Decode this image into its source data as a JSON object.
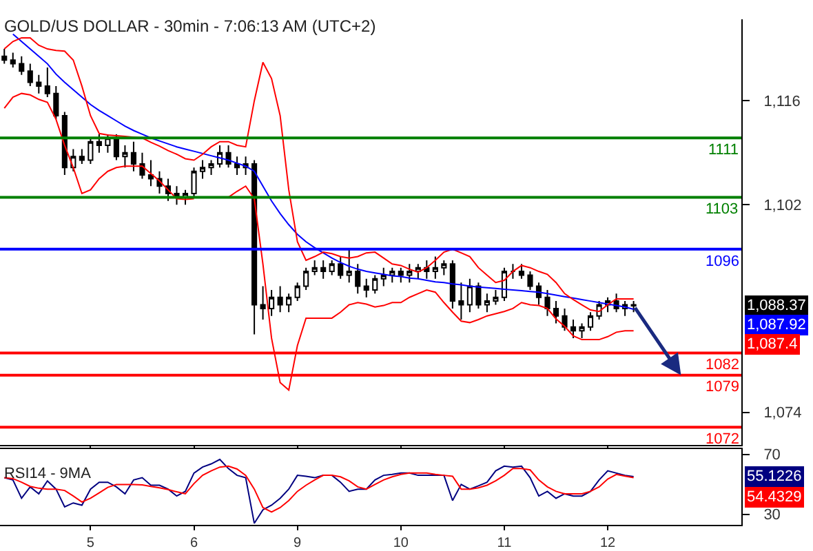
{
  "chart_data": [
    {
      "type": "candlestick",
      "title": "GOLD/US DOLLAR - 30min - 7:06:13 AM (UTC+2)",
      "categories": [
        null,
        null,
        null,
        null,
        null,
        null,
        null,
        null,
        null,
        null,
        "5",
        null,
        null,
        null,
        null,
        null,
        null,
        null,
        null,
        null,
        null,
        null,
        "6",
        null,
        null,
        null,
        null,
        null,
        null,
        null,
        null,
        null,
        null,
        null,
        "9",
        null,
        null,
        null,
        null,
        null,
        null,
        null,
        null,
        null,
        null,
        null,
        "10",
        null,
        null,
        null,
        null,
        null,
        null,
        null,
        null,
        null,
        null,
        null,
        "11",
        null,
        null,
        null,
        null,
        null,
        null,
        null,
        null,
        null,
        null,
        null,
        "12",
        null,
        null,
        null,
        null,
        null,
        null,
        null,
        null,
        null,
        null,
        null,
        null,
        null,
        null,
        null
      ],
      "color": "#000000",
      "ohlc": [
        [
          1122,
          1123,
          1121,
          1121.5
        ],
        [
          1121.5,
          1122.5,
          1120.5,
          1121
        ],
        [
          1121,
          1122,
          1119.5,
          1120
        ],
        [
          1120,
          1121,
          1118,
          1118.5
        ],
        [
          1118.5,
          1119.5,
          1117,
          1118
        ],
        [
          1118,
          1120.5,
          1116.5,
          1117
        ],
        [
          1117,
          1118,
          1113.5,
          1114
        ],
        [
          1114,
          1114.5,
          1106,
          1107
        ],
        [
          1107,
          1109.5,
          1106.5,
          1108.5
        ],
        [
          1108.5,
          1109.5,
          1107.5,
          1108
        ],
        [
          1108,
          1111,
          1107.5,
          1110.5
        ],
        [
          1110.5,
          1111.5,
          1109,
          1110
        ],
        [
          1110,
          1111.5,
          1109,
          1111
        ],
        [
          1111,
          1111.5,
          1108,
          1108.5
        ],
        [
          1108.5,
          1110,
          1107,
          1109
        ],
        [
          1109,
          1110.5,
          1106.5,
          1107.5
        ],
        [
          1107.5,
          1109,
          1105.5,
          1106
        ],
        [
          1106,
          1108,
          1104.5,
          1105.5
        ],
        [
          1105.5,
          1106.5,
          1103.5,
          1104.5
        ],
        [
          1104.5,
          1105.5,
          1102.5,
          1103.5
        ],
        [
          1103.5,
          1104.5,
          1102,
          1103
        ],
        [
          1103,
          1104,
          1102,
          1103.5
        ],
        [
          1103.5,
          1107,
          1103,
          1106.5
        ],
        [
          1106.5,
          1108,
          1105.5,
          1107
        ],
        [
          1107,
          1108,
          1106,
          1107.5
        ],
        [
          1107.5,
          1110,
          1107,
          1109
        ],
        [
          1109,
          1110,
          1107,
          1107.5
        ],
        [
          1107.5,
          1108.5,
          1106,
          1107
        ],
        [
          1107,
          1108.5,
          1106,
          1107.5
        ],
        [
          1107.5,
          1108,
          1084.5,
          1088.5
        ],
        [
          1088.5,
          1091,
          1086.5,
          1088
        ],
        [
          1088,
          1090.5,
          1087,
          1089.5
        ],
        [
          1089.5,
          1091,
          1087.5,
          1088.5
        ],
        [
          1088.5,
          1090,
          1087.5,
          1089.5
        ],
        [
          1089.5,
          1091.5,
          1089,
          1091
        ],
        [
          1091,
          1093.5,
          1090.5,
          1093
        ],
        [
          1093,
          1094.5,
          1092.5,
          1093.5
        ],
        [
          1093.5,
          1094.5,
          1092,
          1093
        ],
        [
          1093,
          1094.5,
          1092.5,
          1094
        ],
        [
          1094,
          1095,
          1092,
          1092.5
        ],
        [
          1092.5,
          1096,
          1091.5,
          1093
        ],
        [
          1093,
          1094,
          1090,
          1091
        ],
        [
          1091,
          1092,
          1089.5,
          1090.5
        ],
        [
          1090.5,
          1092.5,
          1090,
          1092
        ],
        [
          1092,
          1093.5,
          1091,
          1092.5
        ],
        [
          1092.5,
          1093.5,
          1091.5,
          1093
        ],
        [
          1093,
          1093.5,
          1091.5,
          1092.5
        ],
        [
          1092.5,
          1094,
          1091.5,
          1093
        ],
        [
          1093,
          1094,
          1092,
          1093.5
        ],
        [
          1093.5,
          1094.5,
          1092,
          1093
        ],
        [
          1093,
          1095,
          1092,
          1093.5
        ],
        [
          1093.5,
          1094.5,
          1092.5,
          1094
        ],
        [
          1094,
          1094.5,
          1088,
          1089
        ],
        [
          1089,
          1091.5,
          1086.5,
          1088.5
        ],
        [
          1088.5,
          1092,
          1087.5,
          1091
        ],
        [
          1091,
          1091.5,
          1088,
          1088.5
        ],
        [
          1088.5,
          1090,
          1087.5,
          1089
        ],
        [
          1089,
          1090.5,
          1088.5,
          1089.5
        ],
        [
          1089.5,
          1093.5,
          1089,
          1093
        ],
        [
          1093,
          1094,
          1092,
          1093
        ],
        [
          1093,
          1094,
          1092,
          1092.5
        ],
        [
          1092.5,
          1093,
          1090.5,
          1091
        ],
        [
          1091,
          1091.5,
          1088.5,
          1089.5
        ],
        [
          1089.5,
          1090.5,
          1087,
          1088
        ],
        [
          1088,
          1089,
          1086,
          1087
        ],
        [
          1087,
          1088,
          1085,
          1085.5
        ],
        [
          1085.5,
          1086.5,
          1084,
          1085
        ],
        [
          1085,
          1086,
          1084,
          1085.5
        ],
        [
          1085.5,
          1087.5,
          1085,
          1087
        ],
        [
          1087,
          1089,
          1086.5,
          1088.5
        ],
        [
          1088.5,
          1089.5,
          1087.5,
          1089
        ],
        [
          1089,
          1090,
          1087.5,
          1088
        ],
        [
          1088,
          1089,
          1087,
          1088.5
        ],
        [
          1088.5,
          1089,
          1087.5,
          1088.37
        ],
        null,
        null,
        null,
        null,
        null,
        null,
        null,
        null,
        null,
        null,
        null,
        null
      ],
      "series": [
        {
          "type": "line",
          "color": "#0000ff",
          "values": [
            null,
            1125,
            1124,
            1123,
            1122,
            1121,
            1119.6,
            1118.5,
            1117.5,
            1116.5,
            1115.5,
            1114.7,
            1114,
            1113.3,
            1112.6,
            1112,
            1111.5,
            1111,
            1110.6,
            1110.2,
            1109.8,
            1109.5,
            1109.2,
            1108.9,
            1108.6,
            1108.3,
            1108,
            1107.6,
            1107.2,
            1106.5,
            1104.5,
            1102.5,
            1100.8,
            1099.3,
            1098,
            1097,
            1096.2,
            1095.5,
            1094.8,
            1094.2,
            1093.7,
            1093.3,
            1093,
            1092.8,
            1092.6,
            1092.4,
            1092.3,
            1092.1,
            1092,
            1091.8,
            1091.6,
            1091.5,
            1091.3,
            1091.2,
            1091,
            1090.9,
            1090.8,
            1090.7,
            1090.6,
            1090.5,
            1090.4,
            1090.3,
            1090.2,
            1090,
            1089.8,
            1089.6,
            1089.4,
            1089.2,
            1089,
            1088.8,
            1088.6,
            1088.4,
            1088.2,
            1087.9,
            null,
            null,
            null,
            null,
            null,
            null,
            null,
            null,
            null,
            null,
            null,
            null
          ]
        },
        {
          "type": "line",
          "color": "#ff0000",
          "values": [
            1123,
            1124,
            1124.5,
            1124.5,
            1123.5,
            1123,
            1122.8,
            1122.7,
            1121.5,
            1118,
            1114,
            1111.6,
            1111.4,
            1111.3,
            1111.2,
            1111.1,
            1111,
            1110.4,
            1109.9,
            1109.3,
            1108.8,
            1108.2,
            1108,
            1108.8,
            1109.8,
            1110.5,
            1110.5,
            1110,
            1109.8,
            1116,
            1121.2,
            1119,
            1114,
            1104,
            1097,
            1094.5,
            1095,
            1095.6,
            1095.4,
            1095,
            1094.8,
            1095,
            1095.5,
            1095.6,
            1094.8,
            1094,
            1093.8,
            1093.3,
            1092.9,
            1093.5,
            1094.5,
            1095.6,
            1096,
            1095.5,
            1095,
            1093.5,
            1092.5,
            1091.5,
            1091.8,
            1093,
            1093.8,
            1093.5,
            1093,
            1092.6,
            1091.5,
            1090,
            1089.2,
            1088.5,
            1087.8,
            1087.6,
            1088.5,
            1089.3,
            1089.3,
            1089.3,
            null,
            null,
            null,
            null,
            null,
            null,
            null,
            null,
            null,
            null,
            null,
            null
          ]
        },
        {
          "type": "line",
          "color": "#ff0000",
          "values": [
            1115,
            1116.5,
            1117,
            1116.8,
            1116.2,
            1115.8,
            1113.5,
            1110,
            1107,
            1103.5,
            1104,
            1105.5,
            1106.5,
            1107,
            1107.2,
            1107.2,
            1107.2,
            1106.2,
            1105.2,
            1104,
            1102.8,
            1102.7,
            1102.8,
            null,
            null,
            null,
            1103,
            1103.8,
            1104.5,
            1102.8,
            1094,
            1084,
            1078,
            1077,
            1083,
            1086.7,
            1086.7,
            1086.7,
            1086.7,
            1087.5,
            1088.5,
            1088.8,
            1088.6,
            1088.2,
            1088.4,
            1088.8,
            1088.8,
            1089.5,
            1090,
            1090.5,
            1090.2,
            1088.8,
            1087.5,
            1086.3,
            1086.1,
            1086.5,
            1087,
            1087.3,
            1087.6,
            1088,
            1088.8,
            1088.5,
            1088.4,
            1088,
            1086.6,
            1085.6,
            1084.3,
            1083.8,
            1083.8,
            1083.8,
            1084.2,
            1084.8,
            1085,
            1085,
            null,
            null,
            null,
            null,
            null,
            null,
            null,
            null,
            null,
            null,
            null,
            null
          ]
        }
      ],
      "ylim": [
        1069.6,
        1127
      ],
      "yticks": [
        {
          "value": 1074,
          "label": "1,074"
        },
        {
          "value": 1102,
          "label": "1,102"
        },
        {
          "value": 1116,
          "label": "1,116"
        }
      ],
      "ref_lines": [
        {
          "axis": "y",
          "value": 1111,
          "label": "1111",
          "color": "#008000"
        },
        {
          "axis": "y",
          "value": 1103,
          "label": "1103",
          "color": "#008000"
        },
        {
          "axis": "y",
          "value": 1096,
          "label": "1096",
          "color": "#0000ff"
        },
        {
          "axis": "y",
          "value": 1082,
          "label": "1082",
          "color": "#ff0000"
        },
        {
          "axis": "y",
          "value": 1079,
          "label": "1079",
          "color": "#ff0000"
        },
        {
          "axis": "y",
          "value": 1072,
          "label": "1072",
          "color": "#ff0000"
        }
      ],
      "annotations": [
        "1,088.37",
        "1,087.92",
        "1,087.4"
      ],
      "tick_labels": "y"
    },
    {
      "type": "line",
      "title": "RSI14 - 9MA",
      "categories": [
        null,
        null,
        null,
        null,
        null,
        null,
        null,
        null,
        null,
        null,
        "5",
        null,
        null,
        null,
        null,
        null,
        null,
        null,
        null,
        null,
        null,
        null,
        "6",
        null,
        null,
        null,
        null,
        null,
        null,
        null,
        null,
        null,
        null,
        null,
        "9",
        null,
        null,
        null,
        null,
        null,
        null,
        null,
        null,
        null,
        null,
        null,
        "10",
        null,
        null,
        null,
        null,
        null,
        null,
        null,
        null,
        null,
        null,
        null,
        "11",
        null,
        null,
        null,
        null,
        null,
        null,
        null,
        null,
        null,
        null,
        null,
        "12",
        null,
        null,
        null,
        null,
        null,
        null,
        null,
        null,
        null,
        null,
        null,
        null,
        null,
        null,
        null
      ],
      "series": [
        {
          "color": "#000080",
          "values": [
            54.4,
            52.9,
            40.7,
            48.3,
            43.7,
            52.3,
            46.8,
            35,
            37.6,
            36.1,
            46.8,
            51.4,
            51.4,
            48.3,
            43.7,
            52.9,
            54.4,
            49.4,
            49.4,
            46.8,
            42.2,
            45.3,
            57.5,
            61.5,
            63.6,
            66.6,
            60.5,
            56,
            54.4,
            24,
            33,
            36.1,
            40.7,
            46.8,
            56,
            55.4,
            54.4,
            56,
            56,
            51.4,
            45.3,
            46.8,
            46.8,
            52.9,
            56,
            56.6,
            57.5,
            57.5,
            56,
            56,
            56,
            56,
            39.2,
            49.9,
            46.8,
            49,
            51.4,
            59,
            62.1,
            61.5,
            62.1,
            54.4,
            42.2,
            45.3,
            40.7,
            43.7,
            42.2,
            42.2,
            45.3,
            52.9,
            59,
            57.5,
            56,
            55.1226,
            null,
            null,
            null,
            null,
            null,
            null,
            null,
            null,
            null,
            null,
            null,
            null
          ]
        },
        {
          "color": "#ff0000",
          "values": [
            54.4,
            53.8,
            51.4,
            48.6,
            47.4,
            46.8,
            46.8,
            45.9,
            42.2,
            38.2,
            40.7,
            44.3,
            48,
            49.9,
            49.9,
            49.9,
            49.6,
            48.6,
            47.7,
            46.5,
            45,
            43.7,
            50.5,
            56,
            59,
            61.5,
            62.1,
            60.2,
            56,
            46.8,
            34.5,
            31.5,
            34.5,
            39.2,
            45.3,
            49.4,
            52.9,
            56,
            56,
            55,
            52.3,
            48.3,
            46.8,
            49.9,
            52.9,
            55,
            56.6,
            57.5,
            57.5,
            57.5,
            56.6,
            56,
            55.4,
            46.8,
            46.8,
            47.7,
            49.4,
            52.3,
            56,
            60.5,
            60.5,
            59.6,
            52.9,
            48.3,
            45.3,
            43.7,
            43.7,
            43.7,
            45.3,
            48.3,
            53.5,
            56.6,
            55.5,
            54.4329,
            null,
            null,
            null,
            null,
            null,
            null,
            null,
            null,
            null,
            null,
            null,
            null
          ]
        }
      ],
      "ylim": [
        23,
        73.5
      ],
      "yticks": [
        30,
        70
      ],
      "annotations": [
        "55.1226",
        "54.4329"
      ]
    }
  ]
}
